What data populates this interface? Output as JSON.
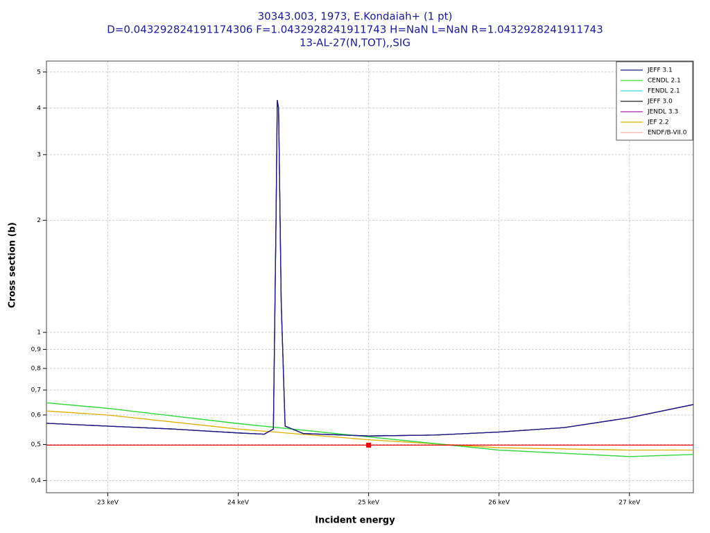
{
  "chart_data": {
    "type": "line",
    "title": "30343.003, 1973, E.Kondaiah+ (1 pt)",
    "subtitle": "D=0.043292824191174306 F=1.0432928241911743 H=NaN L=NaN R=1.0432928241911743",
    "reaction": "13-AL-27(N,TOT),,SIG",
    "x_label": "Incident energy",
    "y_label": "Cross section (b)",
    "xlim": [
      22.53,
      27.49
    ],
    "ylim": [
      0.371,
      5.35
    ],
    "log_y": true,
    "grid": true,
    "legend": "top-right",
    "xticks": [
      {
        "value": 23,
        "label": "23 keV"
      },
      {
        "value": 24,
        "label": "24 keV"
      },
      {
        "value": 25,
        "label": "25 keV"
      },
      {
        "value": 26,
        "label": "26 keV"
      },
      {
        "value": 27,
        "label": "27 keV"
      }
    ],
    "yticks": [
      {
        "value": 0.4,
        "label": "0,4"
      },
      {
        "value": 0.5,
        "label": "0,5"
      },
      {
        "value": 0.6,
        "label": "0,6"
      },
      {
        "value": 0.7,
        "label": "0,7"
      },
      {
        "value": 0.8,
        "label": "0,8"
      },
      {
        "value": 0.9,
        "label": "0,9"
      },
      1,
      2,
      3,
      4,
      5
    ],
    "series": [
      {
        "name": "JEFF 3.1",
        "color": "#1a1a8c",
        "x": [
          22.53,
          23,
          23.5,
          24,
          24.2,
          24.27,
          24.29,
          24.3,
          24.31,
          24.33,
          24.36,
          24.5,
          25,
          25.5,
          26,
          26.5,
          27,
          27.49
        ],
        "values": [
          0.57,
          0.56,
          0.55,
          0.537,
          0.533,
          0.55,
          2.0,
          4.2,
          4.0,
          1.2,
          0.56,
          0.535,
          0.527,
          0.53,
          0.54,
          0.555,
          0.59,
          0.64
        ]
      },
      {
        "name": "CENDL 2.1",
        "color": "#33dd33",
        "x": [
          22.53,
          23,
          24,
          25,
          26,
          27,
          27.49
        ],
        "values": [
          0.647,
          0.625,
          0.569,
          0.524,
          0.483,
          0.464,
          0.47
        ]
      },
      {
        "name": "FENDL 2.1",
        "color": "#33dddd",
        "x": [
          22.53,
          23,
          24,
          25,
          26,
          27,
          27.49
        ],
        "values": [
          0.647,
          0.625,
          0.569,
          0.524,
          0.483,
          0.464,
          0.47
        ]
      },
      {
        "name": "JEFF 3.0",
        "color": "#222222",
        "x": [
          22.53,
          23,
          23.5,
          24,
          24.2,
          24.27,
          24.29,
          24.3,
          24.31,
          24.33,
          24.36,
          24.5,
          25,
          25.5,
          26,
          26.5,
          27,
          27.49
        ],
        "values": [
          0.57,
          0.56,
          0.55,
          0.537,
          0.533,
          0.55,
          2.0,
          4.2,
          4.0,
          1.2,
          0.56,
          0.535,
          0.527,
          0.53,
          0.54,
          0.555,
          0.59,
          0.64
        ]
      },
      {
        "name": "JENDL 3.3",
        "color": "#aa22aa",
        "x": [
          22.53,
          23,
          23.5,
          24,
          24.2,
          24.27,
          24.29,
          24.3,
          24.31,
          24.33,
          24.36,
          24.5,
          25,
          25.5,
          26,
          26.5,
          27,
          27.49
        ],
        "values": [
          0.57,
          0.56,
          0.55,
          0.537,
          0.533,
          0.55,
          2.0,
          4.2,
          4.0,
          1.2,
          0.56,
          0.535,
          0.527,
          0.53,
          0.54,
          0.555,
          0.59,
          0.64
        ]
      },
      {
        "name": "JEF 2.2",
        "color": "#e0b000",
        "x": [
          22.53,
          23,
          24,
          25,
          26,
          27,
          27.49
        ],
        "values": [
          0.615,
          0.6,
          0.55,
          0.515,
          0.49,
          0.483,
          0.483
        ]
      },
      {
        "name": "ENDF/B-VII.0",
        "color": "#ffaaaa",
        "x": [
          22.53,
          23,
          24,
          25,
          26,
          27,
          27.49
        ],
        "values": [
          0.647,
          0.625,
          0.569,
          0.524,
          0.483,
          0.464,
          0.47
        ]
      }
    ],
    "points": {
      "color": "#ee0000",
      "x": [
        25
      ],
      "values": [
        0.498
      ]
    }
  }
}
